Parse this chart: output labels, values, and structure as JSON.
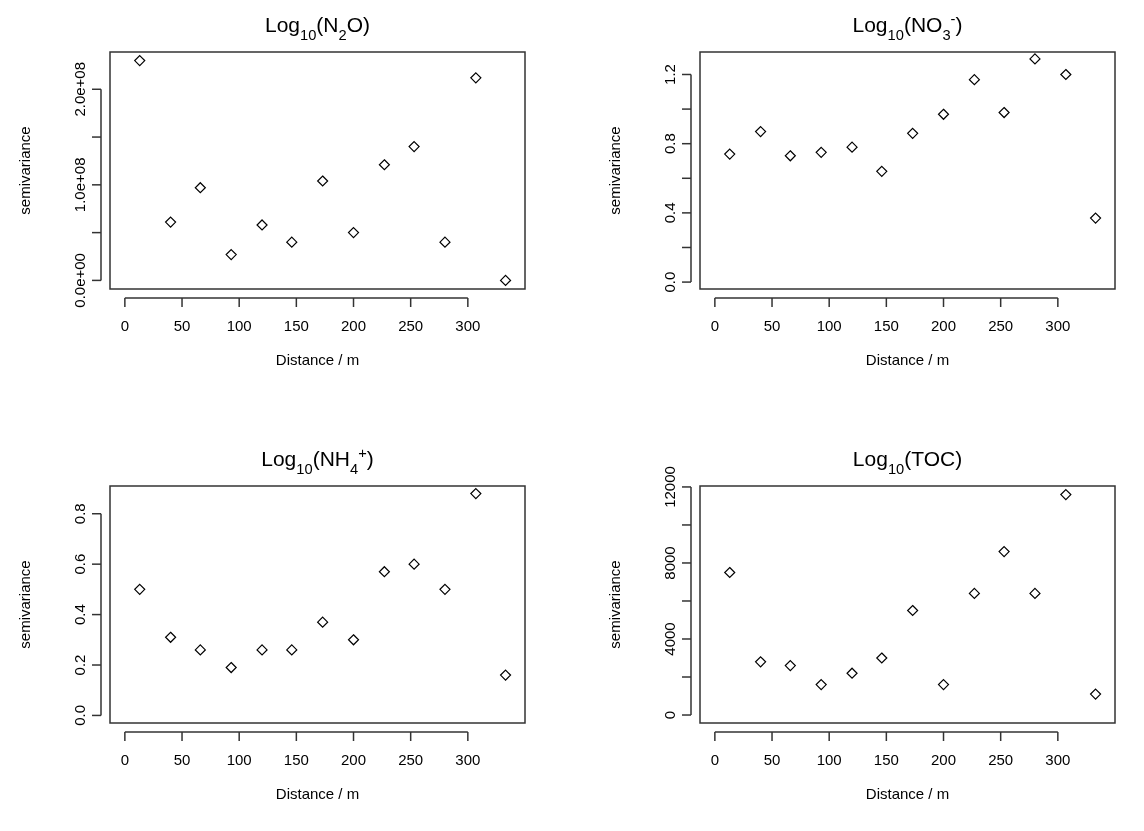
{
  "chart_data": [
    {
      "type": "scatter",
      "title": "Log$_{10}$(N$_{2}$O)",
      "xlabel": "Distance / m",
      "ylabel": "semivariance",
      "marker": "diamond",
      "grid": false,
      "color": "#000000",
      "x": [
        13,
        40,
        66,
        93,
        120,
        146,
        173,
        200,
        227,
        253,
        280,
        307,
        333
      ],
      "values": [
        230000000,
        61000000,
        97000000,
        27000000,
        58000000,
        40000000,
        104000000,
        50000000,
        121000000,
        140000000,
        40000000,
        212000000,
        0
      ],
      "xlim": [
        -13,
        350
      ],
      "xticks": [
        0,
        50,
        100,
        150,
        200,
        250,
        300
      ],
      "ylim": [
        -9000000,
        239000000
      ],
      "yticks": [
        {
          "value": 0,
          "label": "0.0e+00"
        },
        {
          "value": 50000000,
          "label": null
        },
        {
          "value": 100000000,
          "label": "1.0e+08"
        },
        {
          "value": 150000000,
          "label": null
        },
        {
          "value": 200000000,
          "label": "2.0e+08"
        }
      ]
    },
    {
      "type": "scatter",
      "title": "Log$_{10}$(NO$_{3}$$^{-}$)",
      "xlabel": "Distance / m",
      "ylabel": "semivariance",
      "marker": "diamond",
      "grid": false,
      "color": "#000000",
      "x": [
        13,
        40,
        66,
        93,
        120,
        146,
        173,
        200,
        227,
        253,
        280,
        307,
        333
      ],
      "values": [
        0.74,
        0.87,
        0.73,
        0.75,
        0.78,
        0.64,
        0.86,
        0.97,
        1.17,
        0.98,
        1.29,
        1.2,
        0.37
      ],
      "xlim": [
        -13,
        350
      ],
      "xticks": [
        0,
        50,
        100,
        150,
        200,
        250,
        300
      ],
      "ylim": [
        -0.04,
        1.33
      ],
      "yticks": [
        {
          "value": 0,
          "label": "0.0"
        },
        {
          "value": 0.2,
          "label": null
        },
        0.4,
        {
          "value": 0.6,
          "label": null
        },
        0.8,
        {
          "value": 1.0,
          "label": null
        },
        1.2
      ]
    },
    {
      "type": "scatter",
      "title": "Log$_{10}$(NH$_{4}$$^{+}$)",
      "xlabel": "Distance / m",
      "ylabel": "semivariance",
      "marker": "diamond",
      "grid": false,
      "color": "#000000",
      "x": [
        13,
        40,
        66,
        93,
        120,
        146,
        173,
        200,
        227,
        253,
        280,
        307,
        333
      ],
      "values": [
        0.5,
        0.31,
        0.26,
        0.19,
        0.26,
        0.26,
        0.37,
        0.3,
        0.57,
        0.6,
        0.5,
        0.88,
        0.16
      ],
      "xlim": [
        -13,
        350
      ],
      "xticks": [
        0,
        50,
        100,
        150,
        200,
        250,
        300
      ],
      "ylim": [
        -0.03,
        0.91
      ],
      "yticks": [
        {
          "value": 0,
          "label": "0.0"
        },
        0.2,
        0.4,
        0.6,
        0.8
      ]
    },
    {
      "type": "scatter",
      "title": "Log$_{10}$(TOC)",
      "xlabel": "Distance / m",
      "ylabel": "semivariance",
      "marker": "diamond",
      "grid": false,
      "color": "#000000",
      "x": [
        13,
        40,
        66,
        93,
        120,
        146,
        173,
        200,
        227,
        253,
        280,
        307,
        333
      ],
      "values": [
        7500,
        2800,
        2600,
        1600,
        2200,
        3000,
        5500,
        1600,
        6400,
        8600,
        6400,
        11600,
        1100
      ],
      "xlim": [
        -13,
        350
      ],
      "xticks": [
        0,
        50,
        100,
        150,
        200,
        250,
        300
      ],
      "ylim": [
        -420,
        12050
      ],
      "yticks": [
        0,
        {
          "value": 2000,
          "label": null
        },
        4000,
        {
          "value": 6000,
          "label": null
        },
        8000,
        {
          "value": 10000,
          "label": null
        },
        12000
      ]
    }
  ]
}
